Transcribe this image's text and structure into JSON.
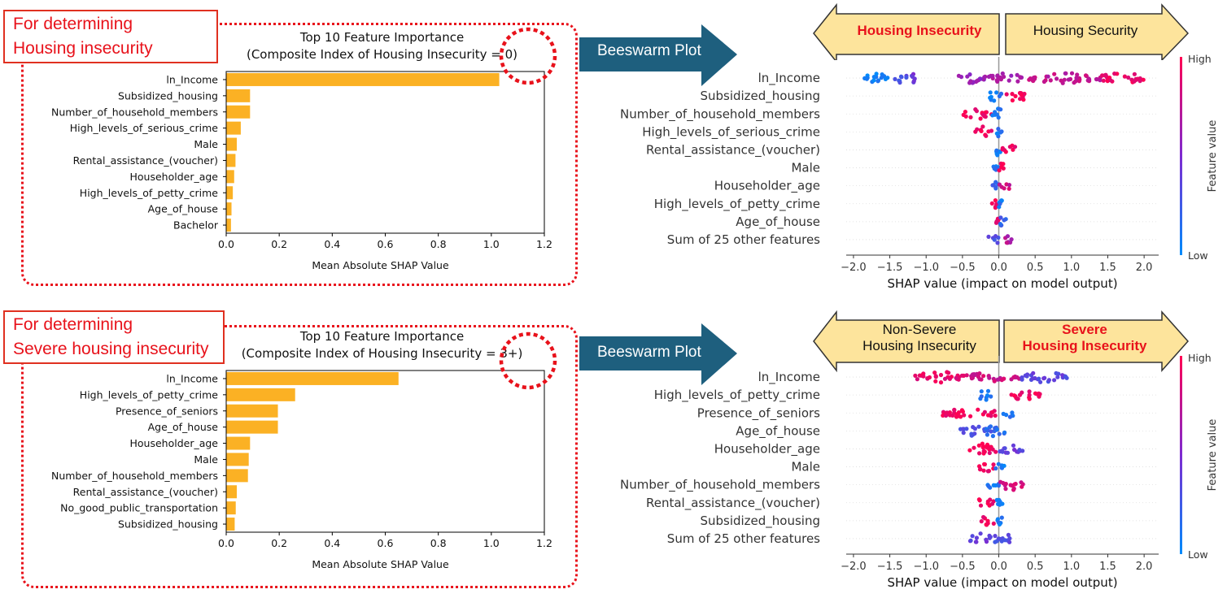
{
  "colors": {
    "bar": "#fbb124",
    "red_label": "#e8121b",
    "arrow_fill": "#fde49c",
    "beeswarm_arrow": "#1e5f7e",
    "shap_high": "#ff0052",
    "shap_low": "#008bfb"
  },
  "panels": [
    {
      "label": "For determining Housing insecurity",
      "label_lines": [
        "For determining",
        "Housing insecurity"
      ],
      "beeswarm_button": "Beeswarm Plot",
      "left_arrow": {
        "text": [
          "Housing Insecurity"
        ],
        "emphasis": true
      },
      "right_arrow": {
        "text": [
          "Housing Security"
        ],
        "emphasis": false
      }
    },
    {
      "label": "For determining Severe housing insecurity",
      "label_lines": [
        "For determining",
        "Severe housing insecurity"
      ],
      "beeswarm_button": "Beeswarm Plot",
      "left_arrow": {
        "text": [
          "Non-Severe",
          "Housing Insecurity"
        ],
        "emphasis": false
      },
      "right_arrow": {
        "text": [
          "Severe",
          "Housing Insecurity"
        ],
        "emphasis": true
      }
    }
  ],
  "chart_data": [
    {
      "type": "bar",
      "orientation": "horizontal",
      "title": [
        "Top 10 Feature Importance",
        "(Composite Index of Housing Insecurity = 0)"
      ],
      "xlabel": "Mean Absolute SHAP Value",
      "xlim": [
        0,
        1.2
      ],
      "xticks": [
        "0.0",
        "0.2",
        "0.4",
        "0.6",
        "0.8",
        "1.0",
        "1.2"
      ],
      "categories": [
        "ln_Income",
        "Subsidized_housing",
        "Number_of_household_members",
        "High_levels_of_serious_crime",
        "Male",
        "Rental_assistance_(voucher)",
        "Householder_age",
        "High_levels_of_petty_crime",
        "Age_of_house",
        "Bachelor"
      ],
      "values": [
        1.03,
        0.09,
        0.09,
        0.055,
        0.04,
        0.035,
        0.03,
        0.025,
        0.02,
        0.018
      ]
    },
    {
      "type": "scatter",
      "subtype": "shap_beeswarm",
      "xlabel": "SHAP value (impact on model output)",
      "xlim": [
        -2.1,
        2.2
      ],
      "xticks": [
        "−2.0",
        "−1.5",
        "−1.0",
        "−0.5",
        "0.0",
        "0.5",
        "1.0",
        "1.5",
        "2.0"
      ],
      "colorbar": {
        "label": "Feature value",
        "high": "High",
        "low": "Low"
      },
      "features": [
        {
          "name": "ln_Income",
          "clusters": [
            [
              -1.9,
              -1.5,
              0.05
            ],
            [
              -1.45,
              -1.25,
              0.3
            ],
            [
              -1.2,
              -1.15,
              0.45
            ],
            [
              -0.6,
              -0.2,
              0.6
            ],
            [
              -0.2,
              0.4,
              0.65
            ],
            [
              0.4,
              1.4,
              0.75
            ],
            [
              1.4,
              2.0,
              0.95
            ]
          ]
        },
        {
          "name": "Subsidized_housing",
          "clusters": [
            [
              -0.15,
              0.05,
              0.1
            ],
            [
              0.1,
              0.4,
              0.95
            ]
          ]
        },
        {
          "name": "Number_of_household_members",
          "clusters": [
            [
              -0.5,
              -0.1,
              0.95
            ],
            [
              -0.1,
              0.1,
              0.1
            ]
          ]
        },
        {
          "name": "High_levels_of_serious_crime",
          "clusters": [
            [
              -0.35,
              -0.1,
              0.95
            ],
            [
              -0.05,
              0.05,
              0.1
            ]
          ]
        },
        {
          "name": "Rental_assistance_(voucher)",
          "clusters": [
            [
              -0.05,
              0.02,
              0.1
            ],
            [
              0.05,
              0.25,
              0.95
            ]
          ]
        },
        {
          "name": "Male",
          "clusters": [
            [
              -0.08,
              0.0,
              0.1
            ],
            [
              0.0,
              0.08,
              0.95
            ]
          ]
        },
        {
          "name": "Householder_age",
          "clusters": [
            [
              -0.1,
              0.0,
              0.2
            ],
            [
              0.0,
              0.15,
              0.8
            ]
          ]
        },
        {
          "name": "High_levels_of_petty_crime",
          "clusters": [
            [
              -0.12,
              -0.02,
              0.95
            ],
            [
              -0.02,
              0.05,
              0.1
            ]
          ]
        },
        {
          "name": "Age_of_house",
          "clusters": [
            [
              -0.08,
              0.0,
              0.9
            ],
            [
              0.0,
              0.1,
              0.2
            ]
          ]
        },
        {
          "name": "Sum of 25 other features",
          "clusters": [
            [
              -0.15,
              0.0,
              0.3
            ],
            [
              0.0,
              0.18,
              0.7
            ]
          ]
        }
      ]
    },
    {
      "type": "bar",
      "orientation": "horizontal",
      "title": [
        "Top 10 Feature Importance",
        "(Composite Index of Housing Insecurity = 3+)"
      ],
      "xlabel": "Mean Absolute SHAP Value",
      "xlim": [
        0,
        1.2
      ],
      "xticks": [
        "0.0",
        "0.2",
        "0.4",
        "0.6",
        "0.8",
        "1.0",
        "1.2"
      ],
      "categories": [
        "ln_Income",
        "High_levels_of_petty_crime",
        "Presence_of_seniors",
        "Age_of_house",
        "Householder_age",
        "Male",
        "Number_of_household_members",
        "Rental_assistance_(voucher)",
        "No_good_public_transportation",
        "Subsidized_housing"
      ],
      "values": [
        0.65,
        0.26,
        0.195,
        0.195,
        0.09,
        0.085,
        0.082,
        0.04,
        0.036,
        0.032
      ]
    },
    {
      "type": "scatter",
      "subtype": "shap_beeswarm",
      "xlabel": "SHAP value (impact on model output)",
      "xlim": [
        -2.1,
        2.2
      ],
      "xticks": [
        "−2.0",
        "−1.5",
        "−1.0",
        "−0.5",
        "0.0",
        "0.5",
        "1.0",
        "1.5",
        "2.0"
      ],
      "colorbar": {
        "label": "Feature value",
        "high": "High",
        "low": "Low"
      },
      "features": [
        {
          "name": "ln_Income",
          "clusters": [
            [
              -1.15,
              -0.4,
              0.9
            ],
            [
              -0.4,
              0.3,
              0.8
            ],
            [
              0.3,
              0.95,
              0.35
            ]
          ]
        },
        {
          "name": "High_levels_of_petty_crime",
          "clusters": [
            [
              -0.3,
              -0.1,
              0.1
            ],
            [
              0.15,
              0.6,
              0.95
            ]
          ]
        },
        {
          "name": "Presence_of_seniors",
          "clusters": [
            [
              -0.8,
              0.0,
              0.95
            ],
            [
              0.05,
              0.2,
              0.1
            ]
          ]
        },
        {
          "name": "Age_of_house",
          "clusters": [
            [
              -0.55,
              -0.1,
              0.3
            ],
            [
              -0.25,
              0.1,
              0.15
            ]
          ]
        },
        {
          "name": "Householder_age",
          "clusters": [
            [
              -0.45,
              0.0,
              0.95
            ],
            [
              0.0,
              0.35,
              0.4
            ]
          ]
        },
        {
          "name": "Male",
          "clusters": [
            [
              -0.3,
              -0.05,
              0.95
            ],
            [
              -0.05,
              0.1,
              0.1
            ]
          ]
        },
        {
          "name": "Number_of_household_members",
          "clusters": [
            [
              -0.2,
              0.0,
              0.1
            ],
            [
              0.0,
              0.35,
              0.85
            ]
          ]
        },
        {
          "name": "Rental_assistance_(voucher)",
          "clusters": [
            [
              -0.3,
              -0.05,
              0.95
            ],
            [
              -0.03,
              0.05,
              0.1
            ]
          ]
        },
        {
          "name": "Subsidized_housing",
          "clusters": [
            [
              -0.25,
              -0.05,
              0.95
            ],
            [
              -0.02,
              0.05,
              0.1
            ]
          ]
        },
        {
          "name": "Sum of 25 other features",
          "clusters": [
            [
              -0.4,
              -0.1,
              0.4
            ],
            [
              -0.1,
              0.2,
              0.3
            ]
          ]
        }
      ]
    }
  ]
}
